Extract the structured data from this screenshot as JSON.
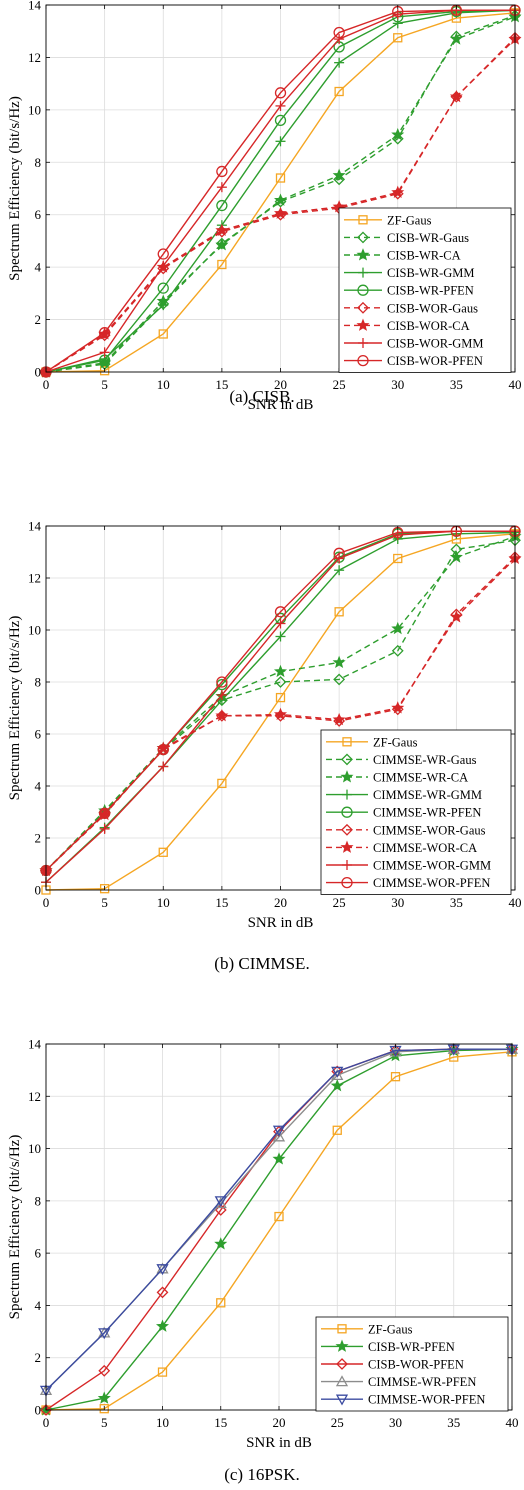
{
  "chart_data": [
    {
      "type": "line",
      "caption": "(a)  CISB.",
      "title": "",
      "xlabel": "SNR in dB",
      "ylabel": "Spectrum Efficiency (bit/s/Hz)",
      "x": [
        0,
        5,
        10,
        15,
        20,
        25,
        30,
        35,
        40
      ],
      "xlim": [
        0,
        40
      ],
      "ylim": [
        0,
        14
      ],
      "xticks": [
        0,
        5,
        10,
        15,
        20,
        25,
        30,
        35,
        40
      ],
      "yticks": [
        0,
        2,
        4,
        6,
        8,
        10,
        12,
        14
      ],
      "grid": true,
      "legend_position": "bottom-right",
      "series": [
        {
          "name": "ZF-Gaus",
          "color": "#F5A623",
          "dash": "solid",
          "marker": "square",
          "values": [
            0,
            0.05,
            1.45,
            4.1,
            7.4,
            10.7,
            12.75,
            13.5,
            13.7
          ]
        },
        {
          "name": "CISB-WR-Gaus",
          "color": "#2E9E2E",
          "dash": "dashed",
          "marker": "diamond",
          "values": [
            0,
            0.3,
            2.6,
            4.9,
            6.5,
            7.35,
            8.9,
            12.8,
            13.6
          ]
        },
        {
          "name": "CISB-WR-CA",
          "color": "#2E9E2E",
          "dash": "dashed",
          "marker": "star",
          "values": [
            0,
            0.35,
            2.7,
            4.85,
            6.55,
            7.5,
            9.05,
            12.7,
            13.55
          ]
        },
        {
          "name": "CISB-WR-GMM",
          "color": "#2E9E2E",
          "dash": "solid",
          "marker": "plus",
          "values": [
            0,
            0.5,
            2.55,
            5.6,
            8.8,
            11.8,
            13.3,
            13.7,
            13.8
          ]
        },
        {
          "name": "CISB-WR-PFEN",
          "color": "#2E9E2E",
          "dash": "solid",
          "marker": "circle",
          "values": [
            0,
            0.45,
            3.2,
            6.35,
            9.6,
            12.4,
            13.55,
            13.75,
            13.8
          ]
        },
        {
          "name": "CISB-WOR-Gaus",
          "color": "#D62728",
          "dash": "dashed",
          "marker": "diamond",
          "values": [
            0,
            1.4,
            3.95,
            5.35,
            6.0,
            6.25,
            6.8,
            10.5,
            12.75
          ]
        },
        {
          "name": "CISB-WOR-CA",
          "color": "#D62728",
          "dash": "dashed",
          "marker": "star",
          "values": [
            0,
            1.45,
            4.0,
            5.4,
            6.05,
            6.3,
            6.85,
            10.5,
            12.7
          ]
        },
        {
          "name": "CISB-WOR-GMM",
          "color": "#D62728",
          "dash": "solid",
          "marker": "plus",
          "values": [
            0,
            0.75,
            4.05,
            7.05,
            10.15,
            12.7,
            13.65,
            13.8,
            13.8
          ]
        },
        {
          "name": "CISB-WOR-PFEN",
          "color": "#D62728",
          "dash": "solid",
          "marker": "circle",
          "values": [
            0,
            1.5,
            4.5,
            7.65,
            10.65,
            12.95,
            13.75,
            13.8,
            13.8
          ]
        }
      ]
    },
    {
      "type": "line",
      "caption": "(b)  CIMMSE.",
      "title": "",
      "xlabel": "SNR in dB",
      "ylabel": "Spectrum Efficiency (bit/s/Hz)",
      "x": [
        0,
        5,
        10,
        15,
        20,
        25,
        30,
        35,
        40
      ],
      "xlim": [
        0,
        40
      ],
      "ylim": [
        0,
        14
      ],
      "xticks": [
        0,
        5,
        10,
        15,
        20,
        25,
        30,
        35,
        40
      ],
      "yticks": [
        0,
        2,
        4,
        6,
        8,
        10,
        12,
        14
      ],
      "grid": true,
      "legend_position": "bottom-right",
      "series": [
        {
          "name": "ZF-Gaus",
          "color": "#F5A623",
          "dash": "solid",
          "marker": "square",
          "values": [
            0,
            0.05,
            1.45,
            4.1,
            7.4,
            10.7,
            12.75,
            13.5,
            13.7
          ]
        },
        {
          "name": "CIMMSE-WR-Gaus",
          "color": "#2E9E2E",
          "dash": "dashed",
          "marker": "diamond",
          "values": [
            0.75,
            3.0,
            5.4,
            7.3,
            8.0,
            8.1,
            9.2,
            13.1,
            13.45
          ]
        },
        {
          "name": "CIMMSE-WR-CA",
          "color": "#2E9E2E",
          "dash": "dashed",
          "marker": "star",
          "values": [
            0.75,
            3.05,
            5.45,
            7.45,
            8.4,
            8.75,
            10.05,
            12.8,
            13.6
          ]
        },
        {
          "name": "CIMMSE-WR-GMM",
          "color": "#2E9E2E",
          "dash": "solid",
          "marker": "plus",
          "values": [
            0.3,
            2.4,
            4.75,
            7.3,
            9.75,
            12.3,
            13.5,
            13.7,
            13.75
          ]
        },
        {
          "name": "CIMMSE-WR-PFEN",
          "color": "#2E9E2E",
          "dash": "solid",
          "marker": "circle",
          "values": [
            0.75,
            2.95,
            5.4,
            7.9,
            10.45,
            12.8,
            13.7,
            13.8,
            13.8
          ]
        },
        {
          "name": "CIMMSE-WOR-Gaus",
          "color": "#D62728",
          "dash": "dashed",
          "marker": "diamond",
          "values": [
            0.75,
            2.95,
            5.4,
            6.7,
            6.7,
            6.5,
            6.95,
            10.6,
            12.8
          ]
        },
        {
          "name": "CIMMSE-WOR-CA",
          "color": "#D62728",
          "dash": "dashed",
          "marker": "star",
          "values": [
            0.75,
            2.9,
            5.45,
            6.7,
            6.75,
            6.55,
            7.0,
            10.5,
            12.75
          ]
        },
        {
          "name": "CIMMSE-WOR-GMM",
          "color": "#D62728",
          "dash": "solid",
          "marker": "plus",
          "values": [
            0.3,
            2.35,
            4.75,
            7.5,
            10.25,
            12.75,
            13.65,
            13.8,
            13.8
          ]
        },
        {
          "name": "CIMMSE-WOR-PFEN",
          "color": "#D62728",
          "dash": "solid",
          "marker": "circle",
          "values": [
            0.75,
            2.95,
            5.4,
            8.0,
            10.7,
            12.95,
            13.75,
            13.8,
            13.8
          ]
        }
      ]
    },
    {
      "type": "line",
      "caption": "(c)  16PSK.",
      "title": "",
      "xlabel": "SNR in dB",
      "ylabel": "Spectrum Efficiency (bit/s/Hz)",
      "x": [
        0,
        5,
        10,
        15,
        20,
        25,
        30,
        35,
        40
      ],
      "xlim": [
        0,
        40
      ],
      "ylim": [
        0,
        14
      ],
      "xticks": [
        0,
        5,
        10,
        15,
        20,
        25,
        30,
        35,
        40
      ],
      "yticks": [
        0,
        2,
        4,
        6,
        8,
        10,
        12,
        14
      ],
      "grid": true,
      "legend_position": "bottom-right",
      "series": [
        {
          "name": "ZF-Gaus",
          "color": "#F5A623",
          "dash": "solid",
          "marker": "square",
          "values": [
            0,
            0.05,
            1.45,
            4.1,
            7.4,
            10.7,
            12.75,
            13.5,
            13.7
          ]
        },
        {
          "name": "CISB-WR-PFEN",
          "color": "#2E9E2E",
          "dash": "solid",
          "marker": "star",
          "values": [
            0,
            0.45,
            3.2,
            6.35,
            9.6,
            12.4,
            13.55,
            13.75,
            13.8
          ]
        },
        {
          "name": "CISB-WOR-PFEN",
          "color": "#D62728",
          "dash": "solid",
          "marker": "diamond",
          "values": [
            0,
            1.5,
            4.5,
            7.65,
            10.65,
            12.95,
            13.75,
            13.8,
            13.8
          ]
        },
        {
          "name": "CIMMSE-WR-PFEN",
          "color": "#8C8C8C",
          "dash": "solid",
          "marker": "triangle-up",
          "values": [
            0.75,
            2.95,
            5.4,
            7.9,
            10.45,
            12.8,
            13.7,
            13.8,
            13.8
          ]
        },
        {
          "name": "CIMMSE-WOR-PFEN",
          "color": "#3B4BA0",
          "dash": "solid",
          "marker": "triangle-down",
          "values": [
            0.75,
            2.95,
            5.4,
            8.0,
            10.7,
            12.95,
            13.75,
            13.8,
            13.8
          ]
        }
      ]
    }
  ]
}
